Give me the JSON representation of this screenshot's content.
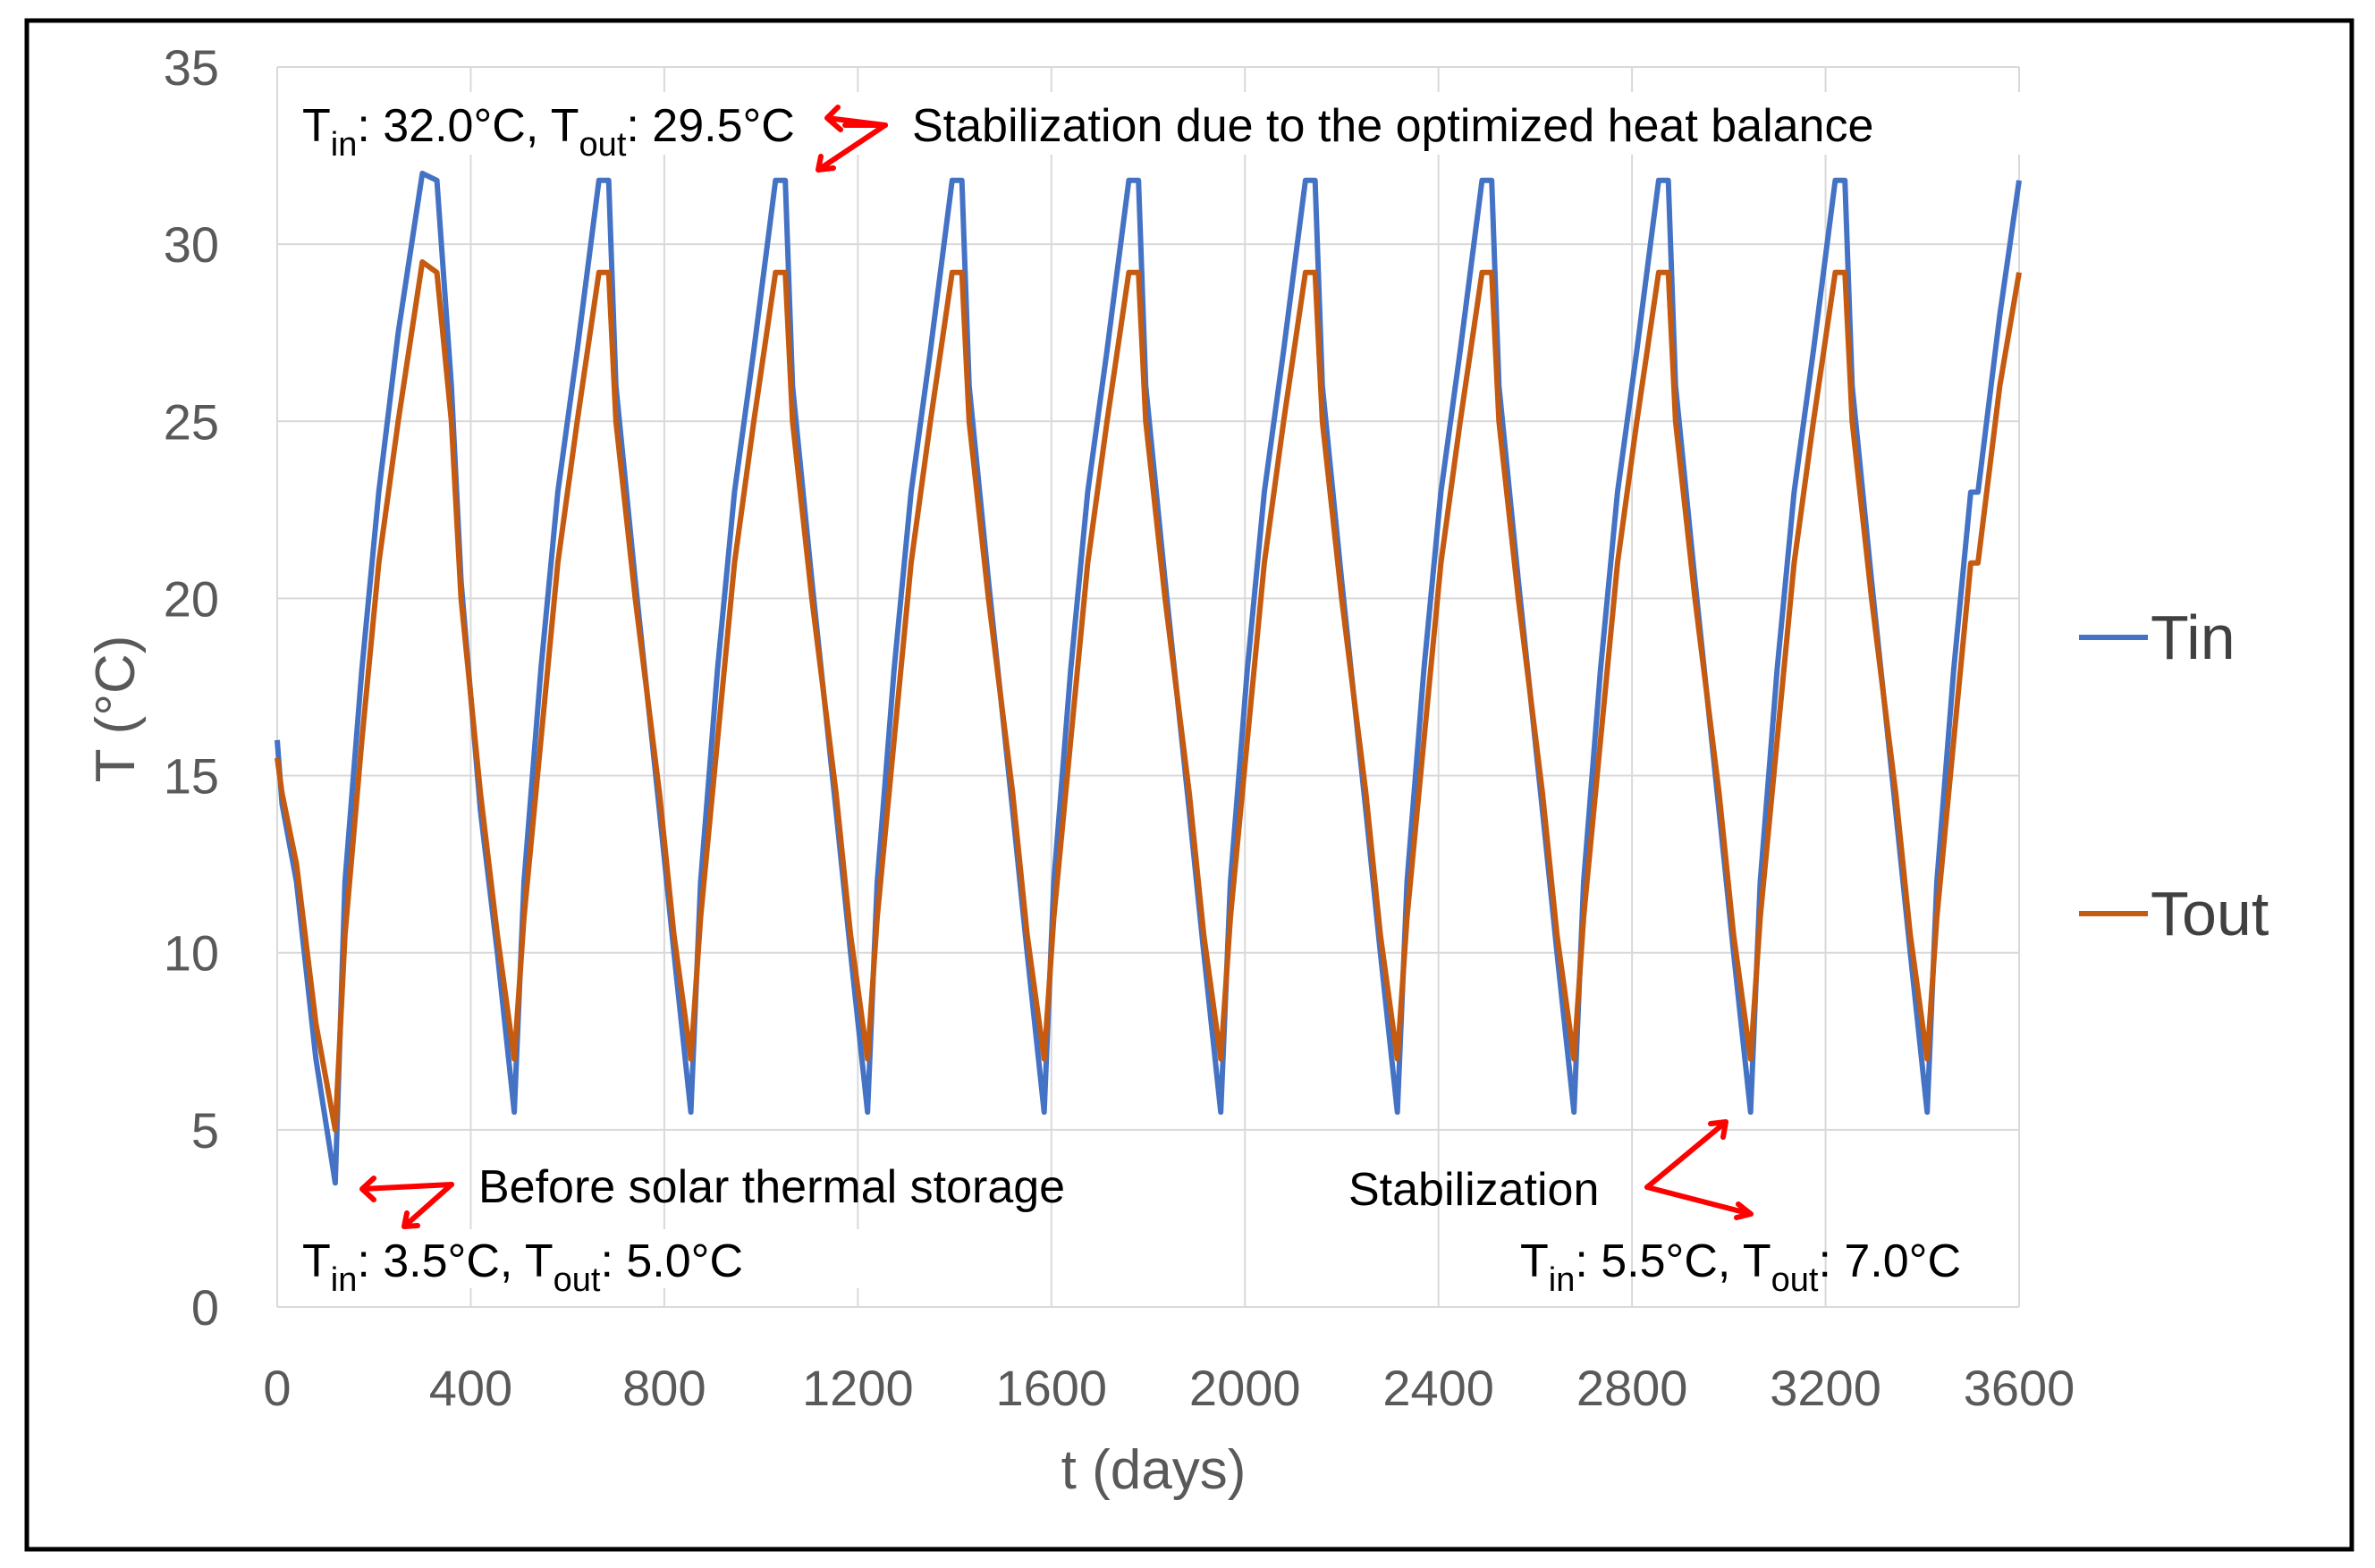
{
  "chart_data": {
    "type": "line",
    "title": "",
    "xlabel": "t (days)",
    "ylabel": "T (°C)",
    "xlim": [
      0,
      3600
    ],
    "ylim": [
      0,
      35
    ],
    "xticks": [
      0,
      400,
      800,
      1200,
      1600,
      2000,
      2400,
      2800,
      3200,
      3600
    ],
    "yticks": [
      0,
      5,
      10,
      15,
      20,
      25,
      30,
      35
    ],
    "x_tick_labels": [
      "0",
      "400",
      "800",
      "1200",
      "1600",
      "2000",
      "2400",
      "2800",
      "3200",
      "3600"
    ],
    "y_tick_labels": [
      "0",
      "5",
      "10",
      "15",
      "20",
      "25",
      "30",
      "35"
    ],
    "grid": true,
    "legend_position": "right",
    "period_days": 365,
    "series": [
      {
        "name": "Tin",
        "color": "#4472C4",
        "first_cycle": {
          "x": [
            0,
            10,
            40,
            80,
            120,
            140,
            175,
            210,
            250,
            300,
            330,
            360,
            380,
            420,
            455,
            490
          ],
          "y": [
            16.0,
            14.2,
            12.0,
            7.0,
            3.5,
            12.0,
            18.0,
            23.0,
            27.5,
            32.0,
            31.8,
            26.0,
            20.5,
            14.0,
            10.0,
            5.5
          ]
        },
        "cycle": {
          "x_offset": [
            0,
            20,
            55,
            90,
            130,
            175,
            195,
            210,
            250,
            300,
            330,
            365
          ],
          "y": [
            5.5,
            12.0,
            18.0,
            23.0,
            27.0,
            31.8,
            31.8,
            26.0,
            20.5,
            14.0,
            10.0,
            5.5
          ]
        },
        "end": {
          "x": [
            3515,
            3560,
            3600
          ],
          "y": [
            23.0,
            28.0,
            31.8
          ]
        }
      },
      {
        "name": "Tout",
        "color": "#C55A11",
        "first_cycle": {
          "x": [
            0,
            10,
            40,
            80,
            120,
            140,
            175,
            210,
            250,
            300,
            330,
            360,
            380,
            420,
            455,
            490
          ],
          "y": [
            15.5,
            14.5,
            12.5,
            8.0,
            5.0,
            10.5,
            16.0,
            21.0,
            25.0,
            29.5,
            29.2,
            25.0,
            20.0,
            14.5,
            10.5,
            7.0
          ]
        },
        "cycle": {
          "x_offset": [
            0,
            20,
            55,
            90,
            130,
            175,
            195,
            210,
            250,
            300,
            330,
            365
          ],
          "y": [
            7.0,
            11.0,
            16.0,
            21.0,
            25.0,
            29.2,
            29.2,
            25.0,
            20.0,
            14.5,
            10.5,
            7.0
          ]
        },
        "end": {
          "x": [
            3515,
            3560,
            3600
          ],
          "y": [
            21.0,
            26.0,
            29.2
          ]
        }
      }
    ],
    "annotations": {
      "top": {
        "tin": "32.0°C",
        "tout": "29.5°C",
        "text": "Stabilization due to the optimized heat balance"
      },
      "before": {
        "text": "Before solar thermal storage",
        "tin": "3.5°C",
        "tout": "5.0°C"
      },
      "stab": {
        "text": "Stabilization",
        "tin": "5.5°C",
        "tout": "7.0°C"
      },
      "labels": {
        "t": "T",
        "in": "in",
        "out": "out",
        "colon": ": ",
        "sep": ", "
      },
      "arrow_color": "#FF0000"
    }
  }
}
